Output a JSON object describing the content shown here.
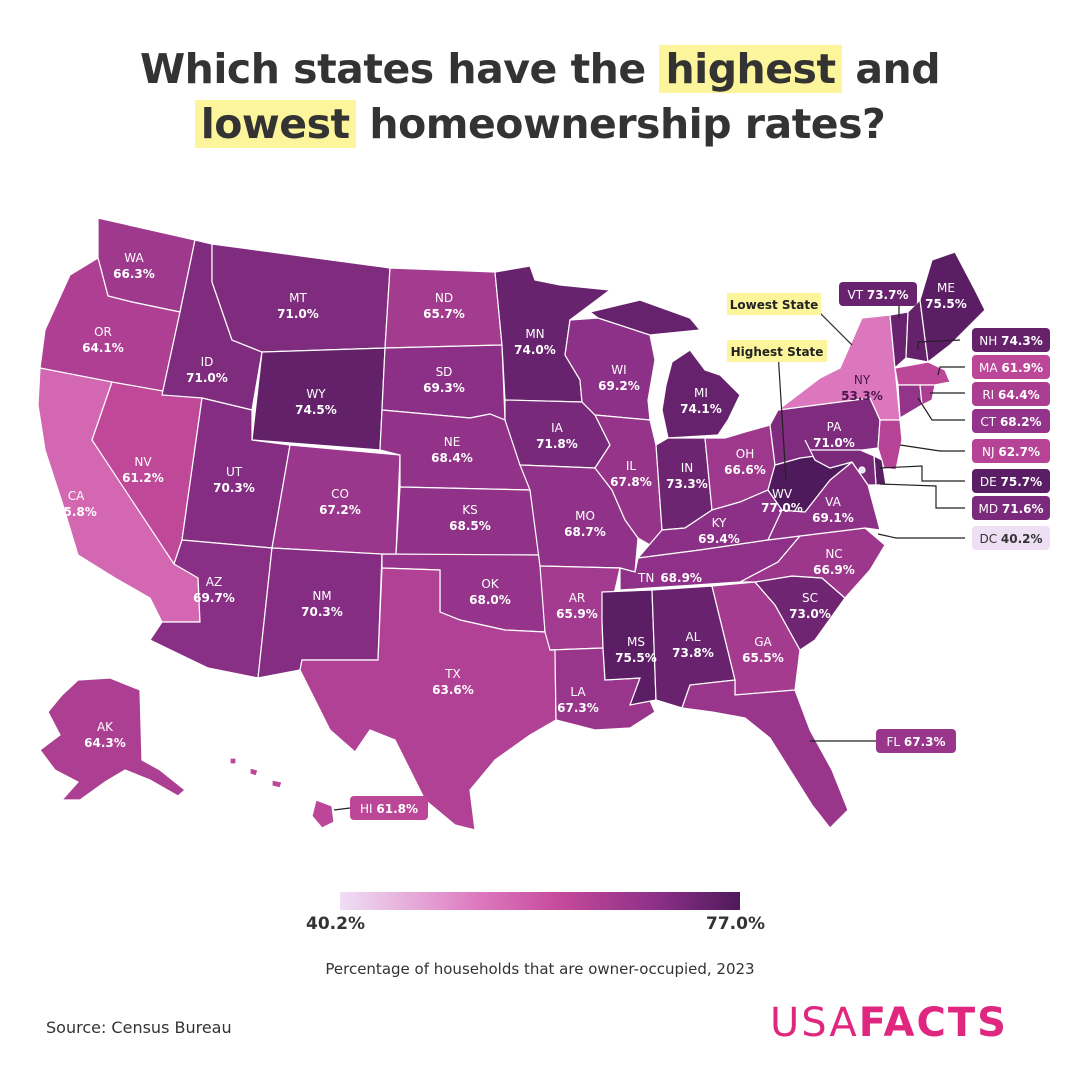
{
  "title": {
    "line1_pre": "Which states have the ",
    "line1_highlight": "highest",
    "line1_post": " and",
    "line2_highlight": "lowest",
    "line2_post": " homeownership rates?"
  },
  "callouts": {
    "lowest": "Lowest State",
    "highest": "Highest State"
  },
  "colors": {
    "title_highlight": "#fdf59c",
    "brand": "#e0277f",
    "scale_low": "#efdff5",
    "scale_high": "#4f1a5b"
  },
  "legend": {
    "min": "40.2%",
    "max": "77.0%",
    "caption": "Percentage of households that are owner-occupied, 2023"
  },
  "source": "Source: Census Bureau",
  "brand": {
    "light": "USA",
    "bold": "FACTS"
  },
  "states": {
    "WA": {
      "abbr": "WA",
      "value": "66.3%"
    },
    "OR": {
      "abbr": "OR",
      "value": "64.1%"
    },
    "CA": {
      "abbr": "CA",
      "value": "55.8%"
    },
    "NV": {
      "abbr": "NV",
      "value": "61.2%"
    },
    "ID": {
      "abbr": "ID",
      "value": "71.0%"
    },
    "MT": {
      "abbr": "MT",
      "value": "71.0%"
    },
    "WY": {
      "abbr": "WY",
      "value": "74.5%"
    },
    "UT": {
      "abbr": "UT",
      "value": "70.3%"
    },
    "AZ": {
      "abbr": "AZ",
      "value": "69.7%"
    },
    "CO": {
      "abbr": "CO",
      "value": "67.2%"
    },
    "NM": {
      "abbr": "NM",
      "value": "70.3%"
    },
    "ND": {
      "abbr": "ND",
      "value": "65.7%"
    },
    "SD": {
      "abbr": "SD",
      "value": "69.3%"
    },
    "NE": {
      "abbr": "NE",
      "value": "68.4%"
    },
    "KS": {
      "abbr": "KS",
      "value": "68.5%"
    },
    "OK": {
      "abbr": "OK",
      "value": "68.0%"
    },
    "TX": {
      "abbr": "TX",
      "value": "63.6%"
    },
    "MN": {
      "abbr": "MN",
      "value": "74.0%"
    },
    "IA": {
      "abbr": "IA",
      "value": "71.8%"
    },
    "MO": {
      "abbr": "MO",
      "value": "68.7%"
    },
    "AR": {
      "abbr": "AR",
      "value": "65.9%"
    },
    "LA": {
      "abbr": "LA",
      "value": "67.3%"
    },
    "WI": {
      "abbr": "WI",
      "value": "69.2%"
    },
    "IL": {
      "abbr": "IL",
      "value": "67.8%"
    },
    "MI": {
      "abbr": "MI",
      "value": "74.1%"
    },
    "IN": {
      "abbr": "IN",
      "value": "73.3%"
    },
    "OH": {
      "abbr": "OH",
      "value": "66.6%"
    },
    "KY": {
      "abbr": "KY",
      "value": "69.4%"
    },
    "TN": {
      "abbr": "TN",
      "value": "68.9%"
    },
    "MS": {
      "abbr": "MS",
      "value": "75.5%"
    },
    "AL": {
      "abbr": "AL",
      "value": "73.8%"
    },
    "GA": {
      "abbr": "GA",
      "value": "65.5%"
    },
    "FL": {
      "abbr": "FL",
      "value": "67.3%"
    },
    "SC": {
      "abbr": "SC",
      "value": "73.0%"
    },
    "NC": {
      "abbr": "NC",
      "value": "66.9%"
    },
    "VA": {
      "abbr": "VA",
      "value": "69.1%"
    },
    "WV": {
      "abbr": "WV",
      "value": "77.0%"
    },
    "PA": {
      "abbr": "PA",
      "value": "71.0%"
    },
    "NY": {
      "abbr": "NY",
      "value": "53.3%"
    },
    "VT": {
      "abbr": "VT",
      "value": "73.7%"
    },
    "ME": {
      "abbr": "ME",
      "value": "75.5%"
    },
    "NH": {
      "abbr": "NH",
      "value": "74.3%"
    },
    "MA": {
      "abbr": "MA",
      "value": "61.9%"
    },
    "RI": {
      "abbr": "RI",
      "value": "64.4%"
    },
    "CT": {
      "abbr": "CT",
      "value": "68.2%"
    },
    "NJ": {
      "abbr": "NJ",
      "value": "62.7%"
    },
    "DE": {
      "abbr": "DE",
      "value": "75.7%"
    },
    "MD": {
      "abbr": "MD",
      "value": "71.6%"
    },
    "DC": {
      "abbr": "DC",
      "value": "40.2%"
    },
    "AK": {
      "abbr": "AK",
      "value": "64.3%"
    },
    "HI": {
      "abbr": "HI",
      "value": "61.8%"
    }
  }
}
